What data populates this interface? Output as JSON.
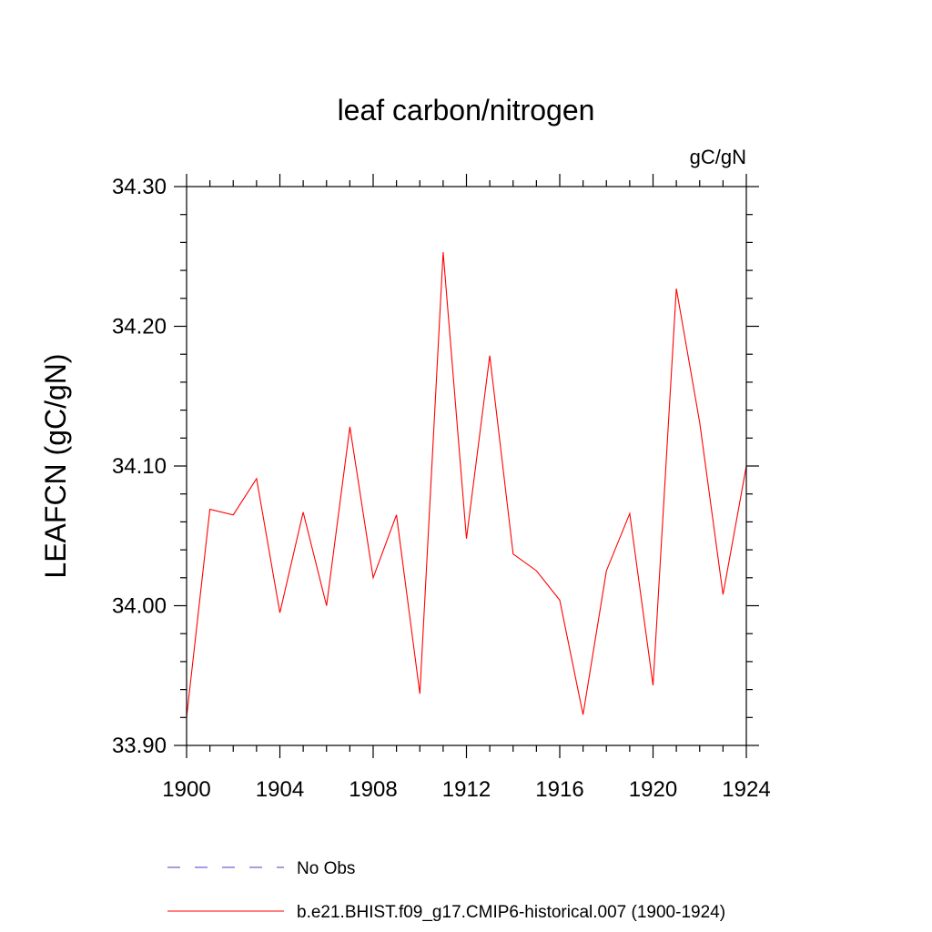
{
  "chart_data": {
    "type": "line",
    "title": "leaf carbon/nitrogen",
    "units_label": "gC/gN",
    "ylabel": "LEAFCN  (gC/gN)",
    "xlabel": "",
    "xlim": [
      1900,
      1924
    ],
    "ylim": [
      33.9,
      34.3
    ],
    "x_ticks": [
      1900,
      1904,
      1908,
      1912,
      1916,
      1920,
      1924
    ],
    "x_tick_labels": [
      "1900",
      "1904",
      "1908",
      "1912",
      "1916",
      "1920",
      "1924"
    ],
    "y_ticks": [
      33.9,
      34.0,
      34.1,
      34.2,
      34.3
    ],
    "y_tick_labels": [
      "33.90",
      "34.00",
      "34.10",
      "34.20",
      "34.30"
    ],
    "x_minor_step": 1,
    "y_minor_step": 0.02,
    "grid": false,
    "legend_position": "bottom",
    "series": [
      {
        "name": "b.e21.BHIST.f09_g17.CMIP6-historical.007 (1900-1924)",
        "color": "#ff0000",
        "style": "solid",
        "x": [
          1900,
          1901,
          1902,
          1903,
          1904,
          1905,
          1906,
          1907,
          1908,
          1909,
          1910,
          1911,
          1912,
          1913,
          1914,
          1915,
          1916,
          1917,
          1918,
          1919,
          1920,
          1921,
          1922,
          1923,
          1924
        ],
        "y": [
          33.92,
          34.069,
          34.065,
          34.091,
          33.995,
          34.067,
          34.0,
          34.128,
          34.02,
          34.065,
          33.937,
          34.253,
          34.048,
          34.179,
          34.037,
          34.025,
          34.004,
          33.922,
          34.025,
          34.066,
          33.943,
          34.227,
          34.131,
          34.008,
          34.1
        ]
      }
    ],
    "legend": [
      {
        "label": "No Obs",
        "color": "#4b3cbf",
        "style": "dashed"
      },
      {
        "label": "b.e21.BHIST.f09_g17.CMIP6-historical.007 (1900-1924)",
        "color": "#ff0000",
        "style": "solid"
      }
    ]
  }
}
